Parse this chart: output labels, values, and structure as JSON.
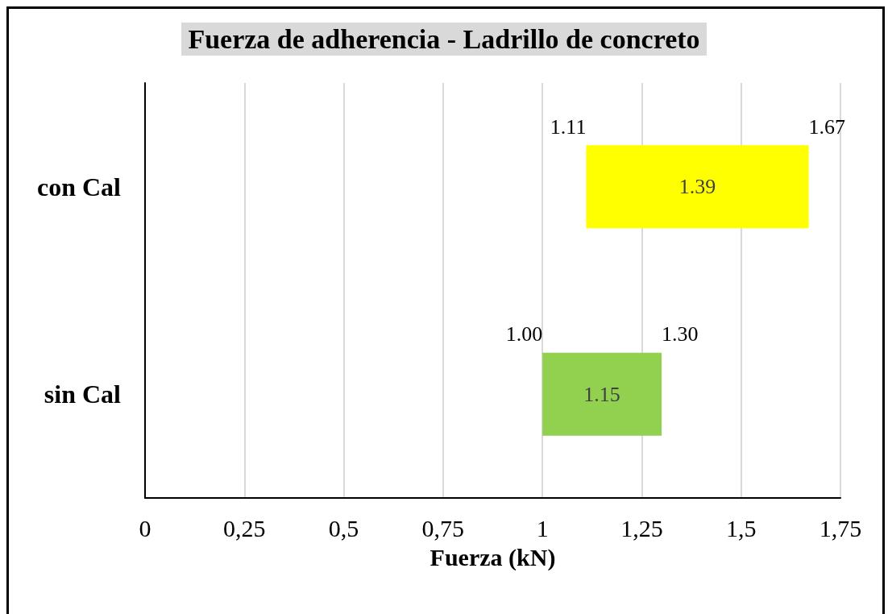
{
  "chart_data": {
    "type": "bar",
    "orientation": "horizontal",
    "title": "Fuerza de adherencia - Ladrillo de concreto",
    "xlabel": "Fuerza (kN)",
    "categories": [
      "con Cal",
      "sin Cal"
    ],
    "base": [
      1.11,
      1.0
    ],
    "values": [
      0.56,
      0.3
    ],
    "colors": [
      "#ffff00",
      "#92d050"
    ],
    "xlim": [
      0,
      1.75
    ],
    "xticks": [
      0,
      {
        "value": 0.25,
        "label": "0,25"
      },
      {
        "value": 0.5,
        "label": "0,5"
      },
      {
        "value": 0.75,
        "label": "0,75"
      },
      1,
      {
        "value": 1.25,
        "label": "1,25"
      },
      {
        "value": 1.5,
        "label": "1,5"
      },
      {
        "value": 1.75,
        "label": "1,75"
      }
    ],
    "grid": "x",
    "annotations": [
      {
        "text": "1.11",
        "x": 1.11,
        "y": "con Cal"
      },
      {
        "text": "1.67",
        "x": 1.67,
        "y": "con Cal"
      },
      "1.39",
      {
        "text": "1.00",
        "x": 1.0,
        "y": "sin Cal"
      },
      {
        "text": "1.30",
        "x": 1.3,
        "y": "sin Cal"
      },
      "1.15"
    ]
  }
}
